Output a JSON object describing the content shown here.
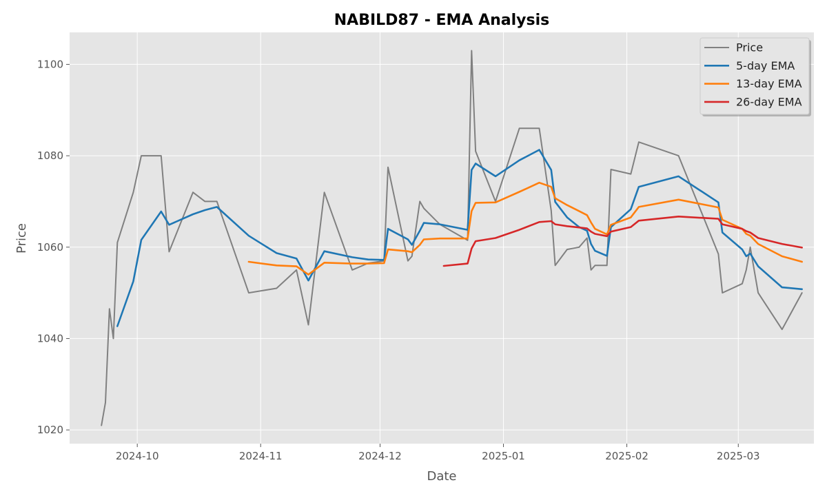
{
  "chart_data": {
    "type": "line",
    "title": "NABILD87 - EMA Analysis",
    "xlabel": "Date",
    "ylabel": "Price",
    "xlim": [
      "2024-09-14",
      "2025-03-20"
    ],
    "ylim": [
      1017,
      1107
    ],
    "x_ticks": [
      "2024-10-01",
      "2024-11-01",
      "2024-12-01",
      "2025-01-01",
      "2025-02-01",
      "2025-03-01"
    ],
    "x_tick_labels": [
      "2024-10",
      "2024-11",
      "2024-12",
      "2025-01",
      "2025-02",
      "2025-03"
    ],
    "y_ticks": [
      1020,
      1040,
      1060,
      1080,
      1100
    ],
    "y_tick_labels": [
      "1020",
      "1040",
      "1060",
      "1080",
      "1100"
    ],
    "grid": true,
    "legend_position": "top-right",
    "series": [
      {
        "name": "Price",
        "color": "#808080",
        "points": [
          [
            "2024-09-22",
            1021
          ],
          [
            "2024-09-23",
            1026
          ],
          [
            "2024-09-24",
            1046.5
          ],
          [
            "2024-09-25",
            1040
          ],
          [
            "2024-09-26",
            1061
          ],
          [
            "2024-09-30",
            1072
          ],
          [
            "2024-10-02",
            1080
          ],
          [
            "2024-10-07",
            1080
          ],
          [
            "2024-10-09",
            1059
          ],
          [
            "2024-10-15",
            1072
          ],
          [
            "2024-10-18",
            1070
          ],
          [
            "2024-10-21",
            1070
          ],
          [
            "2024-10-29",
            1050
          ],
          [
            "2024-11-05",
            1051
          ],
          [
            "2024-11-10",
            1055
          ],
          [
            "2024-11-13",
            1043
          ],
          [
            "2024-11-17",
            1072
          ],
          [
            "2024-11-24",
            1055
          ],
          [
            "2024-11-28",
            1056.5
          ],
          [
            "2024-12-02",
            1057
          ],
          [
            "2024-12-03",
            1077.5
          ],
          [
            "2024-12-08",
            1057
          ],
          [
            "2024-12-09",
            1058
          ],
          [
            "2024-12-11",
            1070
          ],
          [
            "2024-12-12",
            1068.5
          ],
          [
            "2024-12-16",
            1065
          ],
          [
            "2024-12-23",
            1061.5
          ],
          [
            "2024-12-24",
            1103
          ],
          [
            "2024-12-25",
            1081
          ],
          [
            "2024-12-30",
            1070
          ],
          [
            "2025-01-05",
            1086
          ],
          [
            "2025-01-10",
            1086
          ],
          [
            "2025-01-13",
            1068
          ],
          [
            "2025-01-14",
            1056
          ],
          [
            "2025-01-17",
            1059.5
          ],
          [
            "2025-01-20",
            1060
          ],
          [
            "2025-01-22",
            1062
          ],
          [
            "2025-01-23",
            1055
          ],
          [
            "2025-01-24",
            1056
          ],
          [
            "2025-01-27",
            1056
          ],
          [
            "2025-01-28",
            1077
          ],
          [
            "2025-02-02",
            1076
          ],
          [
            "2025-02-04",
            1083
          ],
          [
            "2025-02-14",
            1080
          ],
          [
            "2025-02-24",
            1058.5
          ],
          [
            "2025-02-25",
            1050
          ],
          [
            "2025-03-02",
            1052
          ],
          [
            "2025-03-03",
            1055
          ],
          [
            "2025-03-04",
            1060
          ],
          [
            "2025-03-06",
            1050
          ],
          [
            "2025-03-12",
            1042
          ],
          [
            "2025-03-17",
            1050
          ]
        ]
      },
      {
        "name": "5-day EMA",
        "color": "#1f77b4",
        "points": [
          [
            "2024-09-26",
            1042.7
          ],
          [
            "2024-09-30",
            1052.5
          ],
          [
            "2024-10-02",
            1061.6
          ],
          [
            "2024-10-07",
            1067.8
          ],
          [
            "2024-10-09",
            1064.9
          ],
          [
            "2024-10-15",
            1067.2
          ],
          [
            "2024-10-18",
            1068.1
          ],
          [
            "2024-10-21",
            1068.8
          ],
          [
            "2024-10-29",
            1062.5
          ],
          [
            "2024-11-05",
            1058.7
          ],
          [
            "2024-11-10",
            1057.5
          ],
          [
            "2024-11-13",
            1052.7
          ],
          [
            "2024-11-17",
            1059.1
          ],
          [
            "2024-11-24",
            1057.8
          ],
          [
            "2024-11-28",
            1057.3
          ],
          [
            "2024-12-02",
            1057.2
          ],
          [
            "2024-12-03",
            1064.0
          ],
          [
            "2024-12-08",
            1061.7
          ],
          [
            "2024-12-09",
            1060.5
          ],
          [
            "2024-12-11",
            1063.6
          ],
          [
            "2024-12-12",
            1065.3
          ],
          [
            "2024-12-16",
            1065.0
          ],
          [
            "2024-12-23",
            1063.8
          ],
          [
            "2024-12-24",
            1076.9
          ],
          [
            "2024-12-25",
            1078.3
          ],
          [
            "2024-12-30",
            1075.5
          ],
          [
            "2025-01-05",
            1079.0
          ],
          [
            "2025-01-10",
            1081.3
          ],
          [
            "2025-01-13",
            1076.9
          ],
          [
            "2025-01-14",
            1069.9
          ],
          [
            "2025-01-17",
            1066.5
          ],
          [
            "2025-01-20",
            1064.4
          ],
          [
            "2025-01-22",
            1063.6
          ],
          [
            "2025-01-23",
            1060.7
          ],
          [
            "2025-01-24",
            1059.2
          ],
          [
            "2025-01-27",
            1058.1
          ],
          [
            "2025-01-28",
            1064.4
          ],
          [
            "2025-02-02",
            1068.3
          ],
          [
            "2025-02-04",
            1073.2
          ],
          [
            "2025-02-14",
            1075.5
          ],
          [
            "2025-02-24",
            1069.8
          ],
          [
            "2025-02-25",
            1063.2
          ],
          [
            "2025-03-02",
            1059.5
          ],
          [
            "2025-03-03",
            1058.0
          ],
          [
            "2025-03-04",
            1058.6
          ],
          [
            "2025-03-06",
            1055.8
          ],
          [
            "2025-03-12",
            1051.2
          ],
          [
            "2025-03-17",
            1050.8
          ]
        ]
      },
      {
        "name": "13-day EMA",
        "color": "#ff7f0e",
        "points": [
          [
            "2024-10-29",
            1056.8
          ],
          [
            "2024-11-05",
            1056.0
          ],
          [
            "2024-11-10",
            1055.8
          ],
          [
            "2024-11-13",
            1054.0
          ],
          [
            "2024-11-17",
            1056.6
          ],
          [
            "2024-11-24",
            1056.4
          ],
          [
            "2024-11-28",
            1056.4
          ],
          [
            "2024-12-02",
            1056.5
          ],
          [
            "2024-12-03",
            1059.5
          ],
          [
            "2024-12-08",
            1059.1
          ],
          [
            "2024-12-09",
            1058.9
          ],
          [
            "2024-12-11",
            1060.5
          ],
          [
            "2024-12-12",
            1061.7
          ],
          [
            "2024-12-16",
            1061.9
          ],
          [
            "2024-12-23",
            1061.9
          ],
          [
            "2024-12-24",
            1067.9
          ],
          [
            "2024-12-25",
            1069.7
          ],
          [
            "2024-12-30",
            1069.8
          ],
          [
            "2025-01-05",
            1072.1
          ],
          [
            "2025-01-10",
            1074.1
          ],
          [
            "2025-01-13",
            1073.2
          ],
          [
            "2025-01-14",
            1070.7
          ],
          [
            "2025-01-17",
            1069.2
          ],
          [
            "2025-01-20",
            1067.9
          ],
          [
            "2025-01-22",
            1067.0
          ],
          [
            "2025-01-23",
            1065.4
          ],
          [
            "2025-01-24",
            1064.0
          ],
          [
            "2025-01-27",
            1062.8
          ],
          [
            "2025-01-28",
            1064.9
          ],
          [
            "2025-02-02",
            1066.5
          ],
          [
            "2025-02-04",
            1068.8
          ],
          [
            "2025-02-14",
            1070.4
          ],
          [
            "2025-02-24",
            1068.7
          ],
          [
            "2025-02-25",
            1066.0
          ],
          [
            "2025-03-02",
            1064.0
          ],
          [
            "2025-03-03",
            1062.9
          ],
          [
            "2025-03-04",
            1062.5
          ],
          [
            "2025-03-06",
            1060.7
          ],
          [
            "2025-03-12",
            1058.0
          ],
          [
            "2025-03-17",
            1056.8
          ]
        ]
      },
      {
        "name": "26-day EMA",
        "color": "#d62728",
        "points": [
          [
            "2024-12-17",
            1055.9
          ],
          [
            "2024-12-23",
            1056.4
          ],
          [
            "2024-12-24",
            1059.7
          ],
          [
            "2024-12-25",
            1061.3
          ],
          [
            "2024-12-30",
            1062.0
          ],
          [
            "2025-01-05",
            1063.8
          ],
          [
            "2025-01-10",
            1065.5
          ],
          [
            "2025-01-13",
            1065.7
          ],
          [
            "2025-01-14",
            1065.0
          ],
          [
            "2025-01-17",
            1064.6
          ],
          [
            "2025-01-20",
            1064.3
          ],
          [
            "2025-01-22",
            1064.1
          ],
          [
            "2025-01-23",
            1063.4
          ],
          [
            "2025-01-24",
            1062.9
          ],
          [
            "2025-01-27",
            1062.4
          ],
          [
            "2025-01-28",
            1063.4
          ],
          [
            "2025-02-02",
            1064.4
          ],
          [
            "2025-02-04",
            1065.8
          ],
          [
            "2025-02-14",
            1066.7
          ],
          [
            "2025-02-24",
            1066.2
          ],
          [
            "2025-02-25",
            1065.0
          ],
          [
            "2025-03-02",
            1064.0
          ],
          [
            "2025-03-03",
            1063.5
          ],
          [
            "2025-03-04",
            1063.2
          ],
          [
            "2025-03-06",
            1062.0
          ],
          [
            "2025-03-12",
            1060.7
          ],
          [
            "2025-03-17",
            1059.9
          ]
        ]
      }
    ]
  }
}
